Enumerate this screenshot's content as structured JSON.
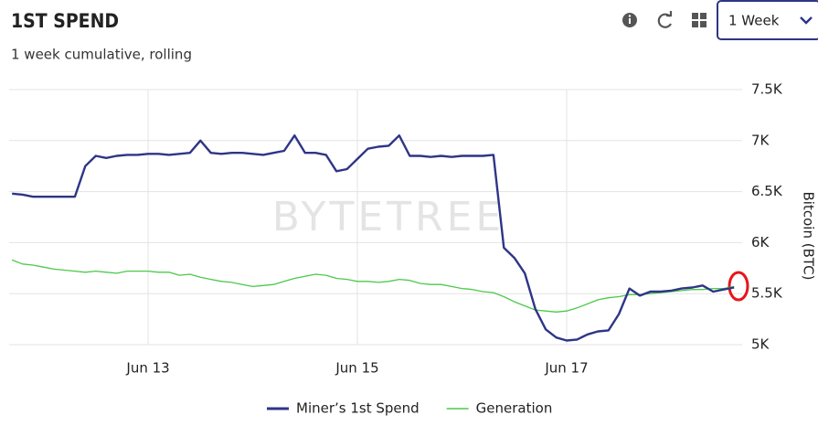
{
  "chart_data": {
    "type": "line",
    "title": "1ST SPEND",
    "subtitle": "1 week cumulative, rolling",
    "range_selector": "1 Week",
    "watermark": "BYTETREE",
    "y_label": "Bitcoin (BTC)",
    "grid": true,
    "legend": "bottom",
    "xlim": [
      11.672,
      18.677
    ],
    "xticks": [
      {
        "value": 13,
        "label": "Jun 13"
      },
      {
        "value": 15,
        "label": "Jun 15"
      },
      {
        "value": 17,
        "label": "Jun 17"
      }
    ],
    "ylim": [
      5000,
      7500
    ],
    "yticks": [
      {
        "value": 5000,
        "label": "5K"
      },
      {
        "value": 5500,
        "label": "5.5K"
      },
      {
        "value": 6000,
        "label": "6K"
      },
      {
        "value": 6500,
        "label": "6.5K"
      },
      {
        "value": 7000,
        "label": "7K"
      },
      {
        "value": 7500,
        "label": "7.5K"
      }
    ],
    "x": [
      11.7,
      11.8,
      11.9,
      12.0,
      12.1,
      12.2,
      12.3,
      12.4,
      12.5,
      12.6,
      12.7,
      12.8,
      12.9,
      13.0,
      13.1,
      13.2,
      13.3,
      13.4,
      13.5,
      13.6,
      13.7,
      13.8,
      13.9,
      14.0,
      14.1,
      14.2,
      14.3,
      14.4,
      14.5,
      14.6,
      14.7,
      14.8,
      14.9,
      15.0,
      15.1,
      15.2,
      15.3,
      15.4,
      15.5,
      15.6,
      15.7,
      15.8,
      15.9,
      16.0,
      16.1,
      16.2,
      16.3,
      16.4,
      16.5,
      16.6,
      16.7,
      16.8,
      16.9,
      17.0,
      17.1,
      17.2,
      17.3,
      17.4,
      17.5,
      17.6,
      17.7,
      17.8,
      17.9,
      18.0,
      18.1,
      18.2,
      18.3,
      18.4,
      18.5,
      18.6
    ],
    "series": [
      {
        "name": "Miner’s 1st Spend",
        "color": "#2e3586",
        "values": [
          6480,
          6470,
          6450,
          6450,
          6450,
          6450,
          6450,
          6750,
          6850,
          6830,
          6850,
          6860,
          6860,
          6870,
          6870,
          6860,
          6870,
          6880,
          7000,
          6880,
          6870,
          6880,
          6880,
          6870,
          6860,
          6880,
          6900,
          7050,
          6880,
          6880,
          6860,
          6700,
          6720,
          6820,
          6920,
          6940,
          6950,
          7050,
          6850,
          6850,
          6840,
          6850,
          6840,
          6850,
          6850,
          6850,
          6860,
          5950,
          5850,
          5700,
          5350,
          5150,
          5070,
          5040,
          5050,
          5100,
          5130,
          5140,
          5300,
          5550,
          5480,
          5520,
          5520,
          5530,
          5550,
          5560,
          5580,
          5520,
          5540,
          5560
        ]
      },
      {
        "name": "Generation",
        "color": "#4cc94a",
        "values": [
          5830,
          5790,
          5780,
          5760,
          5740,
          5730,
          5720,
          5710,
          5720,
          5710,
          5700,
          5720,
          5720,
          5720,
          5710,
          5710,
          5680,
          5690,
          5660,
          5640,
          5620,
          5610,
          5590,
          5570,
          5580,
          5590,
          5620,
          5650,
          5670,
          5690,
          5680,
          5650,
          5640,
          5620,
          5620,
          5610,
          5620,
          5640,
          5630,
          5600,
          5590,
          5590,
          5570,
          5550,
          5540,
          5520,
          5510,
          5470,
          5420,
          5380,
          5340,
          5330,
          5320,
          5330,
          5360,
          5400,
          5440,
          5460,
          5470,
          5490,
          5490,
          5500,
          5510,
          5520,
          5530,
          5540,
          5540,
          5550,
          5550,
          5570
        ]
      }
    ]
  }
}
